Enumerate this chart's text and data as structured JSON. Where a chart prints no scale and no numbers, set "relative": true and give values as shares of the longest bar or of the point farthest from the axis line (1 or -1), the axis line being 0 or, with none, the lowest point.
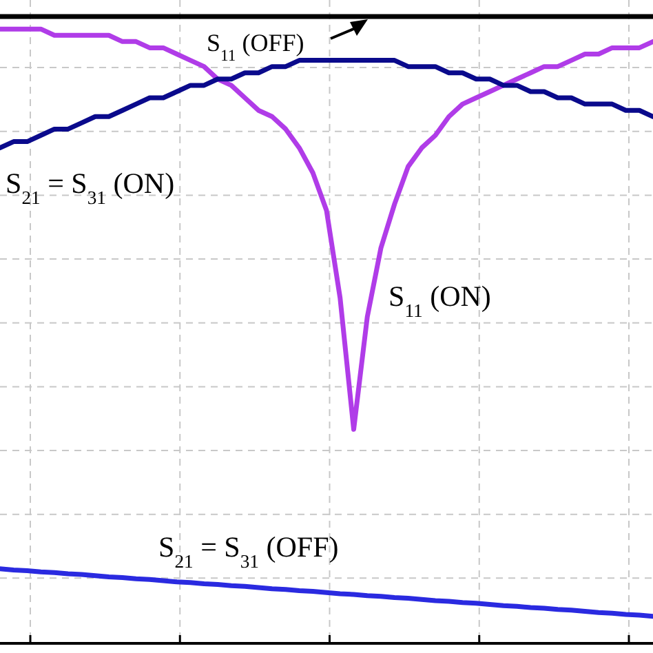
{
  "chart_data": {
    "type": "line",
    "relative": true,
    "grid": true,
    "line_style": "solid",
    "marker": "none",
    "categories": [
      null,
      null,
      null,
      null,
      null,
      null,
      null,
      null,
      null,
      null,
      null,
      null,
      null,
      null,
      null,
      null,
      null,
      null,
      null,
      null,
      null,
      null,
      null,
      null,
      null,
      null,
      null,
      null,
      null,
      null,
      null,
      null,
      null,
      null,
      null,
      null,
      null,
      null,
      null,
      null,
      null,
      null,
      null,
      null,
      null,
      null,
      null,
      null,
      null
    ],
    "series": [
      {
        "name": "S$_{11}$ (OFF)",
        "color": "#000000",
        "values": [
          1,
          1,
          1,
          1,
          1,
          1,
          1,
          1,
          1,
          1,
          1,
          1,
          1,
          1,
          1,
          1,
          1,
          1,
          1,
          1,
          1,
          1,
          1,
          1,
          1,
          1,
          1,
          1,
          1,
          1,
          1,
          1,
          1,
          1,
          1,
          1,
          1,
          1,
          1,
          1,
          1,
          1,
          1,
          1,
          1,
          1,
          1,
          1,
          1
        ]
      },
      {
        "name": "S$_{11}$ (ON)",
        "color": "#b03ce8",
        "values": [
          0.98,
          0.98,
          0.98,
          0.98,
          0.97,
          0.97,
          0.97,
          0.97,
          0.97,
          0.96,
          0.96,
          0.95,
          0.95,
          0.94,
          0.93,
          0.92,
          0.9,
          0.89,
          0.87,
          0.85,
          0.84,
          0.82,
          0.79,
          0.75,
          0.69,
          0.55,
          0.34,
          0.52,
          0.63,
          0.7,
          0.76,
          0.79,
          0.81,
          0.84,
          0.86,
          0.87,
          0.88,
          0.89,
          0.9,
          0.91,
          0.92,
          0.92,
          0.93,
          0.94,
          0.94,
          0.95,
          0.95,
          0.95,
          0.96
        ]
      },
      {
        "name": "S$_{21}$ = S$_{31}$ (ON)",
        "color": "#0a0a8c",
        "values": [
          0.79,
          0.8,
          0.8,
          0.81,
          0.82,
          0.82,
          0.83,
          0.84,
          0.84,
          0.85,
          0.86,
          0.87,
          0.87,
          0.88,
          0.89,
          0.89,
          0.9,
          0.9,
          0.91,
          0.91,
          0.92,
          0.92,
          0.93,
          0.93,
          0.93,
          0.93,
          0.93,
          0.93,
          0.93,
          0.93,
          0.92,
          0.92,
          0.92,
          0.91,
          0.91,
          0.9,
          0.9,
          0.89,
          0.89,
          0.88,
          0.88,
          0.87,
          0.87,
          0.86,
          0.86,
          0.86,
          0.85,
          0.85,
          0.84
        ]
      },
      {
        "name": "S$_{21}$ = S$_{31}$ (OFF)",
        "color": "#2a2ae0",
        "values": [
          0.117,
          0.115,
          0.114,
          0.112,
          0.111,
          0.109,
          0.108,
          0.106,
          0.104,
          0.103,
          0.101,
          0.1,
          0.098,
          0.096,
          0.095,
          0.093,
          0.092,
          0.09,
          0.089,
          0.087,
          0.085,
          0.084,
          0.082,
          0.081,
          0.079,
          0.077,
          0.076,
          0.074,
          0.073,
          0.071,
          0.07,
          0.068,
          0.066,
          0.065,
          0.063,
          0.062,
          0.06,
          0.058,
          0.057,
          0.055,
          0.054,
          0.052,
          0.051,
          0.049,
          0.047,
          0.046,
          0.044,
          0.043,
          0.041
        ]
      }
    ]
  }
}
